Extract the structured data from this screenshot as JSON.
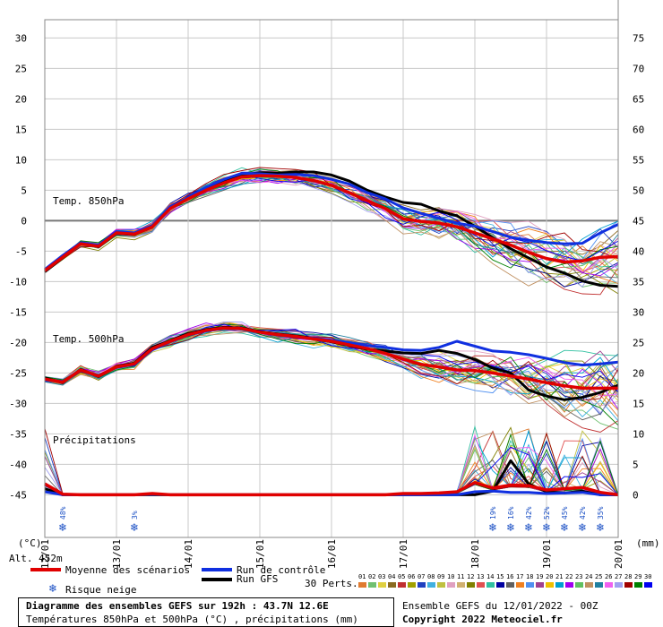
{
  "chart_data": {
    "type": "line",
    "title": "Diagramme des ensembles GEFS sur 192h : 43.7N 12.6E",
    "subtitle": "Températures 850hPa et 500hPa (°C) , précipitations (mm)",
    "x_tick_labels": [
      "12/01",
      "13/01",
      "14/01",
      "15/01",
      "16/01",
      "17/01",
      "18/01",
      "19/01",
      "20/01"
    ],
    "xlim_hours": [
      0,
      192
    ],
    "y_left": {
      "label": "(°C)",
      "ylim": [
        -52,
        33
      ],
      "ticks": [
        30,
        25,
        20,
        15,
        10,
        5,
        0,
        -5,
        -10,
        -15,
        -20,
        -25,
        -30,
        -35,
        -40,
        -45
      ]
    },
    "y_right": {
      "label": "(mm)",
      "ylim": [
        -7,
        78
      ],
      "ticks": [
        75,
        70,
        65,
        60,
        55,
        50,
        45,
        40,
        35,
        30,
        25,
        20,
        15,
        10,
        5,
        0
      ]
    },
    "annotations": {
      "t850_label": "Temp. 850hPa",
      "t500_label": "Temp. 500hPa",
      "precip_label": "Précipitations",
      "altitude": "Alt. 452m"
    },
    "hours": [
      0,
      6,
      12,
      18,
      24,
      30,
      36,
      42,
      48,
      54,
      60,
      66,
      72,
      78,
      84,
      90,
      96,
      102,
      108,
      114,
      120,
      126,
      132,
      138,
      144,
      150,
      156,
      162,
      168,
      174,
      180,
      186,
      192
    ],
    "series": [
      {
        "name": "Moyenne des scénarios",
        "color": "#e00000",
        "width": 3.5,
        "group": "t850",
        "values": [
          -8.2,
          -6,
          -3.8,
          -4.2,
          -2,
          -2.2,
          -1,
          2,
          3.6,
          5,
          6.2,
          7.2,
          7.4,
          7.3,
          7.1,
          6.6,
          5.8,
          4.6,
          3.3,
          2,
          0.3,
          -0.1,
          -0.4,
          -1,
          -2,
          -3,
          -4,
          -5.2,
          -6.2,
          -6.8,
          -6.6,
          -6,
          -5.9
        ]
      },
      {
        "name": "Run de contrôle",
        "color": "#1030e0",
        "width": 3,
        "group": "t850",
        "values": [
          -8,
          -5.7,
          -3.6,
          -4,
          -1.8,
          -2,
          -0.8,
          2.3,
          3.8,
          5.5,
          6.8,
          7.8,
          7.7,
          7.5,
          7.6,
          7.4,
          6.8,
          6,
          4.6,
          3.6,
          2.1,
          1.2,
          0.4,
          -0.4,
          -0.9,
          -1.8,
          -2.7,
          -3.2,
          -3.6,
          -3.8,
          -3.7,
          -2,
          -0.6
        ]
      },
      {
        "name": "Run GFS",
        "color": "#000000",
        "width": 3,
        "group": "t850",
        "values": [
          -8.4,
          -6.1,
          -3.6,
          -4.3,
          -2.1,
          -2.3,
          -1,
          2.1,
          3.8,
          5.4,
          6.6,
          7.5,
          7.9,
          7.8,
          8,
          8,
          7.5,
          6.5,
          5,
          3.9,
          3,
          2.7,
          1.6,
          0.8,
          -0.9,
          -2.8,
          -4.6,
          -6.1,
          -7.6,
          -8.6,
          -9.9,
          -10.6,
          -10.8
        ]
      },
      {
        "name": "Moyenne des scénarios",
        "color": "#e00000",
        "width": 3.5,
        "group": "t500",
        "values": [
          -26,
          -26.5,
          -24.5,
          -25.5,
          -24,
          -23.5,
          -21,
          -19.8,
          -18.7,
          -18,
          -17.6,
          -17.7,
          -18.3,
          -18.7,
          -19,
          -19.4,
          -19.8,
          -20.4,
          -21,
          -21.8,
          -22.7,
          -23.6,
          -24,
          -24.5,
          -24.6,
          -25,
          -25.5,
          -26,
          -26.6,
          -27.1,
          -27.5,
          -27.5,
          -27.5
        ]
      },
      {
        "name": "Run de contrôle",
        "color": "#1030e0",
        "width": 3,
        "group": "t500",
        "values": [
          -26.2,
          -26.4,
          -24.6,
          -25.4,
          -24.1,
          -23.6,
          -21.2,
          -19.9,
          -18.8,
          -18.1,
          -17.7,
          -17.8,
          -18.3,
          -18.8,
          -19.1,
          -19.3,
          -19.6,
          -20,
          -20.5,
          -20.8,
          -21.2,
          -21.3,
          -20.8,
          -19.8,
          -20.6,
          -21.4,
          -21.6,
          -22,
          -22.6,
          -23.3,
          -23.7,
          -23.5,
          -23.2
        ]
      },
      {
        "name": "Run GFS",
        "color": "#000000",
        "width": 3,
        "group": "t500",
        "values": [
          -25.8,
          -26.6,
          -24.4,
          -25.6,
          -23.9,
          -23.4,
          -20.8,
          -19.7,
          -18.5,
          -17.9,
          -17.5,
          -17.6,
          -18.2,
          -18.6,
          -18.9,
          -19.3,
          -19.9,
          -20.5,
          -21.1,
          -21.4,
          -21.7,
          -21.8,
          -21.3,
          -21.8,
          -22.8,
          -24.2,
          -25,
          -27.8,
          -28.8,
          -29.4,
          -29,
          -28.2,
          -27
        ]
      },
      {
        "name": "Moyenne des scénarios",
        "color": "#e00000",
        "width": 3.5,
        "group": "precip",
        "values": [
          1.8,
          0.1,
          0,
          0,
          0,
          0,
          0.2,
          0,
          0,
          0,
          0,
          0,
          0,
          0,
          0,
          0,
          0,
          0,
          0,
          0,
          0.2,
          0.2,
          0.3,
          0.5,
          2,
          1.1,
          1.6,
          1.5,
          0.8,
          1,
          1.2,
          0.4,
          0
        ]
      },
      {
        "name": "Run de contrôle",
        "color": "#1030e0",
        "width": 3,
        "group": "precip",
        "values": [
          0.5,
          0,
          0,
          0,
          0,
          0,
          0.1,
          0,
          0,
          0,
          0,
          0,
          0,
          0,
          0,
          0,
          0,
          0,
          0,
          0,
          0,
          0,
          0,
          0,
          0.5,
          0.6,
          0.4,
          0.4,
          0.2,
          0.3,
          0.4,
          0,
          0
        ]
      },
      {
        "name": "Run GFS",
        "color": "#000000",
        "width": 3,
        "group": "precip",
        "values": [
          1,
          0,
          0,
          0,
          0,
          0,
          0,
          0,
          0,
          0,
          0,
          0,
          0,
          0,
          0,
          0,
          0,
          0,
          0,
          0,
          0,
          0,
          0,
          0,
          0,
          0.6,
          5.6,
          1.8,
          0.5,
          0.3,
          0.6,
          0,
          0
        ]
      }
    ],
    "snow_risk": [
      {
        "hour": 6,
        "label": "48%"
      },
      {
        "hour": 30,
        "label": "3%"
      },
      {
        "hour": 150,
        "label": "19%"
      },
      {
        "hour": 156,
        "label": "16%"
      },
      {
        "hour": 162,
        "label": "42%"
      },
      {
        "hour": 168,
        "label": "52%"
      },
      {
        "hour": 174,
        "label": "45%"
      },
      {
        "hour": 180,
        "label": "42%"
      },
      {
        "hour": 186,
        "label": "35%"
      }
    ],
    "perturbation_colors": [
      "#e07b30",
      "#70c070",
      "#e0d040",
      "#8a6a20",
      "#c03030",
      "#a0a000",
      "#2040c0",
      "#40b0e0",
      "#c0c040",
      "#e0a0c0",
      "#d0b070",
      "#808000",
      "#e05050",
      "#30c0a0",
      "#0000a0",
      "#606060",
      "#f08020",
      "#5090f0",
      "#a04090",
      "#f0c000",
      "#00a0d0",
      "#a000f0",
      "#60c060",
      "#c09060",
      "#2080a0",
      "#f060f0",
      "#a0a0f0",
      "#a00000",
      "#008000",
      "#0000f0"
    ]
  },
  "legend": {
    "mean": "Moyenne des scénarios",
    "snow": "Risque neige",
    "control": "Run de contrôle",
    "gfs": "Run GFS",
    "perts_label": "30 Perts.",
    "pert_numbers": [
      "01",
      "02",
      "03",
      "04",
      "05",
      "06",
      "07",
      "08",
      "09",
      "10",
      "11",
      "12",
      "13",
      "14",
      "15",
      "16",
      "17",
      "18",
      "19",
      "20",
      "21",
      "22",
      "23",
      "24",
      "25",
      "26",
      "27",
      "28",
      "29",
      "30"
    ]
  },
  "title_box": {
    "line1": "Diagramme des ensembles GEFS sur 192h : 43.7N 12.6E",
    "line2": "Températures 850hPa et 500hPa (°C) , précipitations (mm)"
  },
  "footer": {
    "run": "Ensemble GEFS du 12/01/2022 - 00Z",
    "copyright": "Copyright 2022 Meteociel.fr"
  },
  "colors": {
    "mean": "#e00000",
    "control": "#1030e0",
    "gfs": "#000000",
    "grid": "#b0b0b0",
    "snow": "#1a4fc4"
  }
}
